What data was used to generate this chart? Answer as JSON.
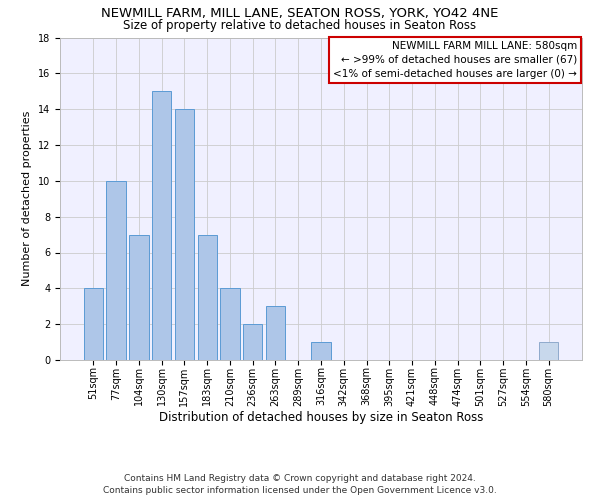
{
  "title1": "NEWMILL FARM, MILL LANE, SEATON ROSS, YORK, YO42 4NE",
  "title2": "Size of property relative to detached houses in Seaton Ross",
  "xlabel": "Distribution of detached houses by size in Seaton Ross",
  "ylabel": "Number of detached properties",
  "bar_values": [
    4,
    10,
    7,
    15,
    14,
    7,
    4,
    2,
    3,
    0,
    1,
    0,
    0,
    0,
    0,
    0,
    0,
    0,
    0,
    0,
    1
  ],
  "bar_labels": [
    "51sqm",
    "77sqm",
    "104sqm",
    "130sqm",
    "157sqm",
    "183sqm",
    "210sqm",
    "236sqm",
    "263sqm",
    "289sqm",
    "316sqm",
    "342sqm",
    "368sqm",
    "395sqm",
    "421sqm",
    "448sqm",
    "474sqm",
    "501sqm",
    "527sqm",
    "554sqm",
    "580sqm"
  ],
  "bar_color": "#aec6e8",
  "bar_edge_color": "#5b9bd5",
  "highlight_bar_index": 20,
  "highlight_bar_color": "#c8d8ec",
  "highlight_bar_edge_color": "#8faacc",
  "legend_title": "NEWMILL FARM MILL LANE: 580sqm",
  "legend_line1": "← >99% of detached houses are smaller (67)",
  "legend_line2": "<1% of semi-detached houses are larger (0) →",
  "grid_color": "#cccccc",
  "background_color": "#f0f0ff",
  "ylim": [
    0,
    18
  ],
  "yticks": [
    0,
    2,
    4,
    6,
    8,
    10,
    12,
    14,
    16,
    18
  ],
  "footer1": "Contains HM Land Registry data © Crown copyright and database right 2024.",
  "footer2": "Contains public sector information licensed under the Open Government Licence v3.0.",
  "title1_fontsize": 9.5,
  "title2_fontsize": 8.5,
  "xlabel_fontsize": 8.5,
  "ylabel_fontsize": 8,
  "tick_fontsize": 7,
  "legend_fontsize": 7.5,
  "footer_fontsize": 6.5
}
